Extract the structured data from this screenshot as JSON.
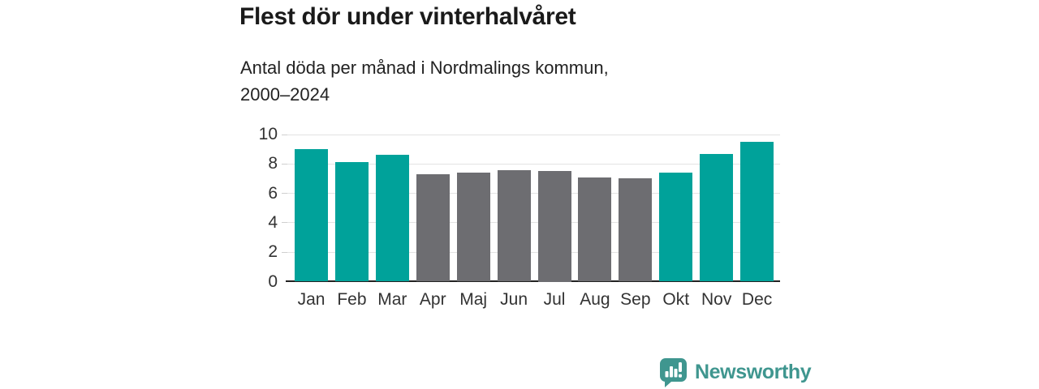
{
  "header": {
    "title": "Flest dör under vinterhalvåret",
    "subtitle": "Antal döda per månad i Nordmalings kommun,\n2000–2024"
  },
  "chart_data": {
    "type": "bar",
    "title": "Flest dör under vinterhalvåret",
    "subtitle": "Antal döda per månad i Nordmalings kommun, 2000–2024",
    "categories": [
      "Jan",
      "Feb",
      "Mar",
      "Apr",
      "Maj",
      "Jun",
      "Jul",
      "Aug",
      "Sep",
      "Okt",
      "Nov",
      "Dec"
    ],
    "values": [
      9.0,
      8.1,
      8.6,
      7.3,
      7.4,
      7.6,
      7.5,
      7.1,
      7.0,
      7.4,
      8.7,
      9.5
    ],
    "bar_color_keys": [
      "teal",
      "teal",
      "teal",
      "gray",
      "gray",
      "gray",
      "gray",
      "gray",
      "gray",
      "teal",
      "teal",
      "teal"
    ],
    "xlabel": "",
    "ylabel": "",
    "ylim": [
      0,
      10
    ],
    "y_ticks": [
      0,
      2,
      4,
      6,
      8,
      10
    ],
    "grid": true,
    "legend": "none"
  },
  "colors": {
    "teal": "#00a29a",
    "gray": "#6d6d71",
    "grid_line": "#e3e3e3",
    "axis_line": "#222222",
    "title_text": "#1a1a1a",
    "tick_text": "#333333",
    "brand_teal": "#3f968f"
  },
  "footer": {
    "brand": "Newsworthy"
  }
}
